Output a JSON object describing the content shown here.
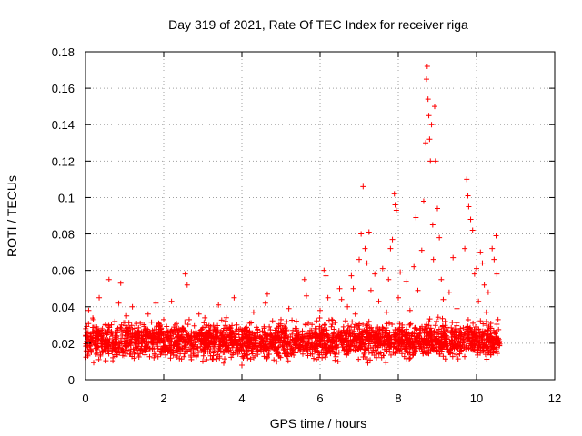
{
  "chart_data": {
    "type": "scatter",
    "title": "Day 319 of 2021, Rate Of TEC Index for receiver riga",
    "xlabel": "GPS time / hours",
    "ylabel": "ROTI / TECUs",
    "xlim": [
      0,
      12
    ],
    "ylim": [
      0,
      0.18
    ],
    "xticks": [
      0,
      2,
      4,
      6,
      8,
      10,
      12
    ],
    "yticks": [
      0,
      0.02,
      0.04,
      0.06,
      0.08,
      0.1,
      0.12,
      0.14,
      0.16,
      0.18
    ],
    "xtick_labels": [
      "0",
      "2",
      "4",
      "6",
      "8",
      "10",
      "12"
    ],
    "ytick_labels": [
      "0",
      "0.02",
      "0.04",
      "0.06",
      "0.08",
      "0.1",
      "0.12",
      "0.14",
      "0.16",
      "0.18"
    ],
    "grid": true,
    "marker": "+",
    "color": "#ff0000",
    "series": [
      {
        "name": "ROTI",
        "points": [
          [
            0.05,
            0.019
          ],
          [
            0.08,
            0.038
          ],
          [
            0.12,
            0.024
          ],
          [
            0.15,
            0.015
          ],
          [
            0.2,
            0.033
          ],
          [
            0.25,
            0.021
          ],
          [
            0.3,
            0.028
          ],
          [
            0.35,
            0.045
          ],
          [
            0.38,
            0.013
          ],
          [
            0.42,
            0.022
          ],
          [
            0.5,
            0.03
          ],
          [
            0.55,
            0.018
          ],
          [
            0.6,
            0.055
          ],
          [
            0.65,
            0.025
          ],
          [
            0.7,
            0.012
          ],
          [
            0.75,
            0.032
          ],
          [
            0.8,
            0.02
          ],
          [
            0.85,
            0.042
          ],
          [
            0.9,
            0.053
          ],
          [
            0.95,
            0.016
          ],
          [
            1.0,
            0.027
          ],
          [
            1.05,
            0.035
          ],
          [
            1.1,
            0.019
          ],
          [
            1.2,
            0.04
          ],
          [
            1.25,
            0.014
          ],
          [
            1.3,
            0.023
          ],
          [
            1.4,
            0.031
          ],
          [
            1.5,
            0.017
          ],
          [
            1.55,
            0.028
          ],
          [
            1.6,
            0.036
          ],
          [
            1.7,
            0.02
          ],
          [
            1.75,
            0.012
          ],
          [
            1.8,
            0.042
          ],
          [
            1.9,
            0.026
          ],
          [
            2.0,
            0.033
          ],
          [
            2.05,
            0.018
          ],
          [
            2.1,
            0.022
          ],
          [
            2.2,
            0.043
          ],
          [
            2.25,
            0.015
          ],
          [
            2.3,
            0.03
          ],
          [
            2.4,
            0.019
          ],
          [
            2.5,
            0.027
          ],
          [
            2.55,
            0.058
          ],
          [
            2.6,
            0.052
          ],
          [
            2.65,
            0.033
          ],
          [
            2.7,
            0.016
          ],
          [
            2.8,
            0.024
          ],
          [
            2.9,
            0.036
          ],
          [
            3.0,
            0.021
          ],
          [
            3.1,
            0.011
          ],
          [
            3.2,
            0.029
          ],
          [
            3.3,
            0.018
          ],
          [
            3.4,
            0.041
          ],
          [
            3.5,
            0.025
          ],
          [
            3.55,
            0.015
          ],
          [
            3.6,
            0.034
          ],
          [
            3.7,
            0.022
          ],
          [
            3.8,
            0.045
          ],
          [
            3.9,
            0.014
          ],
          [
            4.0,
            0.008
          ],
          [
            4.05,
            0.027
          ],
          [
            4.1,
            0.02
          ],
          [
            4.2,
            0.031
          ],
          [
            4.3,
            0.037
          ],
          [
            4.35,
            0.013
          ],
          [
            4.4,
            0.024
          ],
          [
            4.5,
            0.018
          ],
          [
            4.6,
            0.042
          ],
          [
            4.65,
            0.047
          ],
          [
            4.7,
            0.029
          ],
          [
            4.8,
            0.02
          ],
          [
            4.9,
            0.015
          ],
          [
            5.0,
            0.033
          ],
          [
            5.1,
            0.025
          ],
          [
            5.2,
            0.039
          ],
          [
            5.3,
            0.017
          ],
          [
            5.4,
            0.028
          ],
          [
            5.5,
            0.022
          ],
          [
            5.6,
            0.055
          ],
          [
            5.65,
            0.046
          ],
          [
            5.7,
            0.031
          ],
          [
            5.8,
            0.014
          ],
          [
            5.9,
            0.026
          ],
          [
            6.0,
            0.038
          ],
          [
            6.05,
            0.012
          ],
          [
            6.1,
            0.06
          ],
          [
            6.15,
            0.057
          ],
          [
            6.2,
            0.045
          ],
          [
            6.3,
            0.033
          ],
          [
            6.4,
            0.021
          ],
          [
            6.5,
            0.05
          ],
          [
            6.55,
            0.044
          ],
          [
            6.6,
            0.029
          ],
          [
            6.7,
            0.04
          ],
          [
            6.8,
            0.057
          ],
          [
            6.85,
            0.05
          ],
          [
            6.9,
            0.036
          ],
          [
            6.95,
            0.018
          ],
          [
            7.0,
            0.066
          ],
          [
            7.05,
            0.08
          ],
          [
            7.1,
            0.106
          ],
          [
            7.15,
            0.072
          ],
          [
            7.2,
            0.064
          ],
          [
            7.25,
            0.081
          ],
          [
            7.3,
            0.049
          ],
          [
            7.35,
            0.027
          ],
          [
            7.4,
            0.058
          ],
          [
            7.5,
            0.043
          ],
          [
            7.55,
            0.019
          ],
          [
            7.6,
            0.061
          ],
          [
            7.7,
            0.037
          ],
          [
            7.75,
            0.055
          ],
          [
            7.8,
            0.072
          ],
          [
            7.85,
            0.077
          ],
          [
            7.9,
            0.102
          ],
          [
            7.92,
            0.096
          ],
          [
            7.95,
            0.093
          ],
          [
            8.0,
            0.045
          ],
          [
            8.05,
            0.059
          ],
          [
            8.1,
            0.03
          ],
          [
            8.2,
            0.054
          ],
          [
            8.3,
            0.038
          ],
          [
            8.4,
            0.062
          ],
          [
            8.45,
            0.089
          ],
          [
            8.5,
            0.049
          ],
          [
            8.55,
            0.028
          ],
          [
            8.6,
            0.071
          ],
          [
            8.65,
            0.098
          ],
          [
            8.7,
            0.13
          ],
          [
            8.72,
            0.165
          ],
          [
            8.74,
            0.172
          ],
          [
            8.76,
            0.154
          ],
          [
            8.78,
            0.145
          ],
          [
            8.8,
            0.132
          ],
          [
            8.82,
            0.12
          ],
          [
            8.85,
            0.14
          ],
          [
            8.88,
            0.085
          ],
          [
            8.9,
            0.066
          ],
          [
            8.93,
            0.15
          ],
          [
            8.95,
            0.12
          ],
          [
            9.0,
            0.094
          ],
          [
            9.05,
            0.078
          ],
          [
            9.1,
            0.055
          ],
          [
            9.15,
            0.044
          ],
          [
            9.2,
            0.032
          ],
          [
            9.3,
            0.048
          ],
          [
            9.4,
            0.067
          ],
          [
            9.5,
            0.039
          ],
          [
            9.6,
            0.026
          ],
          [
            9.7,
            0.072
          ],
          [
            9.75,
            0.11
          ],
          [
            9.78,
            0.101
          ],
          [
            9.8,
            0.095
          ],
          [
            9.85,
            0.088
          ],
          [
            9.9,
            0.082
          ],
          [
            9.95,
            0.058
          ],
          [
            10.0,
            0.061
          ],
          [
            10.05,
            0.043
          ],
          [
            10.1,
            0.07
          ],
          [
            10.15,
            0.064
          ],
          [
            10.2,
            0.052
          ],
          [
            10.25,
            0.037
          ],
          [
            10.3,
            0.048
          ],
          [
            10.35,
            0.029
          ],
          [
            10.4,
            0.072
          ],
          [
            10.45,
            0.066
          ],
          [
            10.5,
            0.079
          ],
          [
            10.52,
            0.058
          ],
          [
            10.55,
            0.033
          ],
          [
            10.58,
            0.021
          ]
        ]
      }
    ],
    "background_noise": {
      "x_range": [
        0,
        10.6
      ],
      "y_typical_range": [
        0.008,
        0.035
      ],
      "count": 2600
    }
  }
}
